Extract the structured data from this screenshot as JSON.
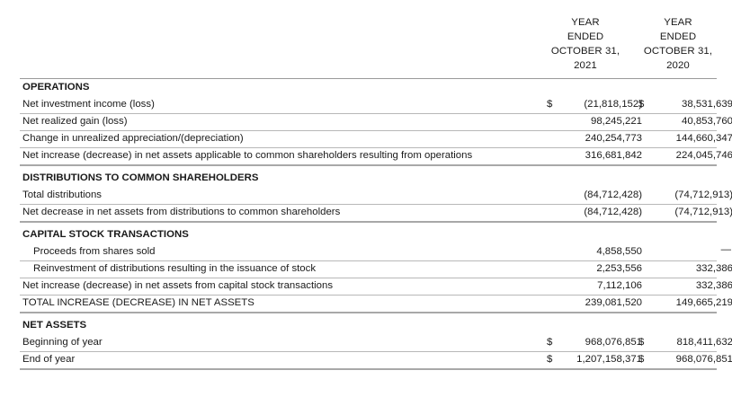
{
  "columns": {
    "col1": [
      "YEAR",
      "ENDED",
      "OCTOBER 31,",
      "2021"
    ],
    "col2": [
      "YEAR",
      "ENDED",
      "OCTOBER 31,",
      "2020"
    ]
  },
  "operations": {
    "title": "OPERATIONS",
    "rows": [
      {
        "label": "Net investment income (loss)",
        "cur1": "$",
        "v1": "(21,818,152)",
        "cur2": "$",
        "v2": "38,531,639"
      },
      {
        "label": "Net realized gain (loss)",
        "cur1": "",
        "v1": "98,245,221",
        "cur2": "",
        "v2": "40,853,760"
      },
      {
        "label": "Change in unrealized appreciation/(depreciation)",
        "cur1": "",
        "v1": "240,254,773",
        "cur2": "",
        "v2": "144,660,347"
      },
      {
        "label": "Net increase (decrease) in net assets applicable to common shareholders resulting from operations",
        "cur1": "",
        "v1": "316,681,842",
        "cur2": "",
        "v2": "224,045,746"
      }
    ]
  },
  "distributions": {
    "title": "DISTRIBUTIONS TO COMMON SHAREHOLDERS",
    "rows": [
      {
        "label": "Total distributions",
        "v1": "(84,712,428)",
        "v2": "(74,712,913)"
      },
      {
        "label": "Net decrease in net assets from distributions to common shareholders",
        "v1": "(84,712,428)",
        "v2": "(74,712,913)"
      }
    ]
  },
  "capital": {
    "title": "CAPITAL STOCK TRANSACTIONS",
    "rows": [
      {
        "label": "Proceeds from shares sold",
        "v1": "4,858,550",
        "v2": "—"
      },
      {
        "label": "Reinvestment of distributions resulting in the issuance of stock",
        "v1": "2,253,556",
        "v2": "332,386"
      },
      {
        "label": "Net increase (decrease) in net assets from capital stock transactions",
        "v1": "7,112,106",
        "v2": "332,386"
      },
      {
        "label": "TOTAL INCREASE (DECREASE) IN NET ASSETS",
        "v1": "239,081,520",
        "v2": "149,665,219"
      }
    ]
  },
  "net_assets": {
    "title": "NET ASSETS",
    "rows": [
      {
        "label": "Beginning of year",
        "cur1": "$",
        "v1": "968,076,851",
        "cur2": "$",
        "v2": "818,411,632"
      },
      {
        "label": "End of year",
        "cur1": "$",
        "v1": "1,207,158,371",
        "cur2": "$",
        "v2": "968,076,851"
      }
    ]
  }
}
